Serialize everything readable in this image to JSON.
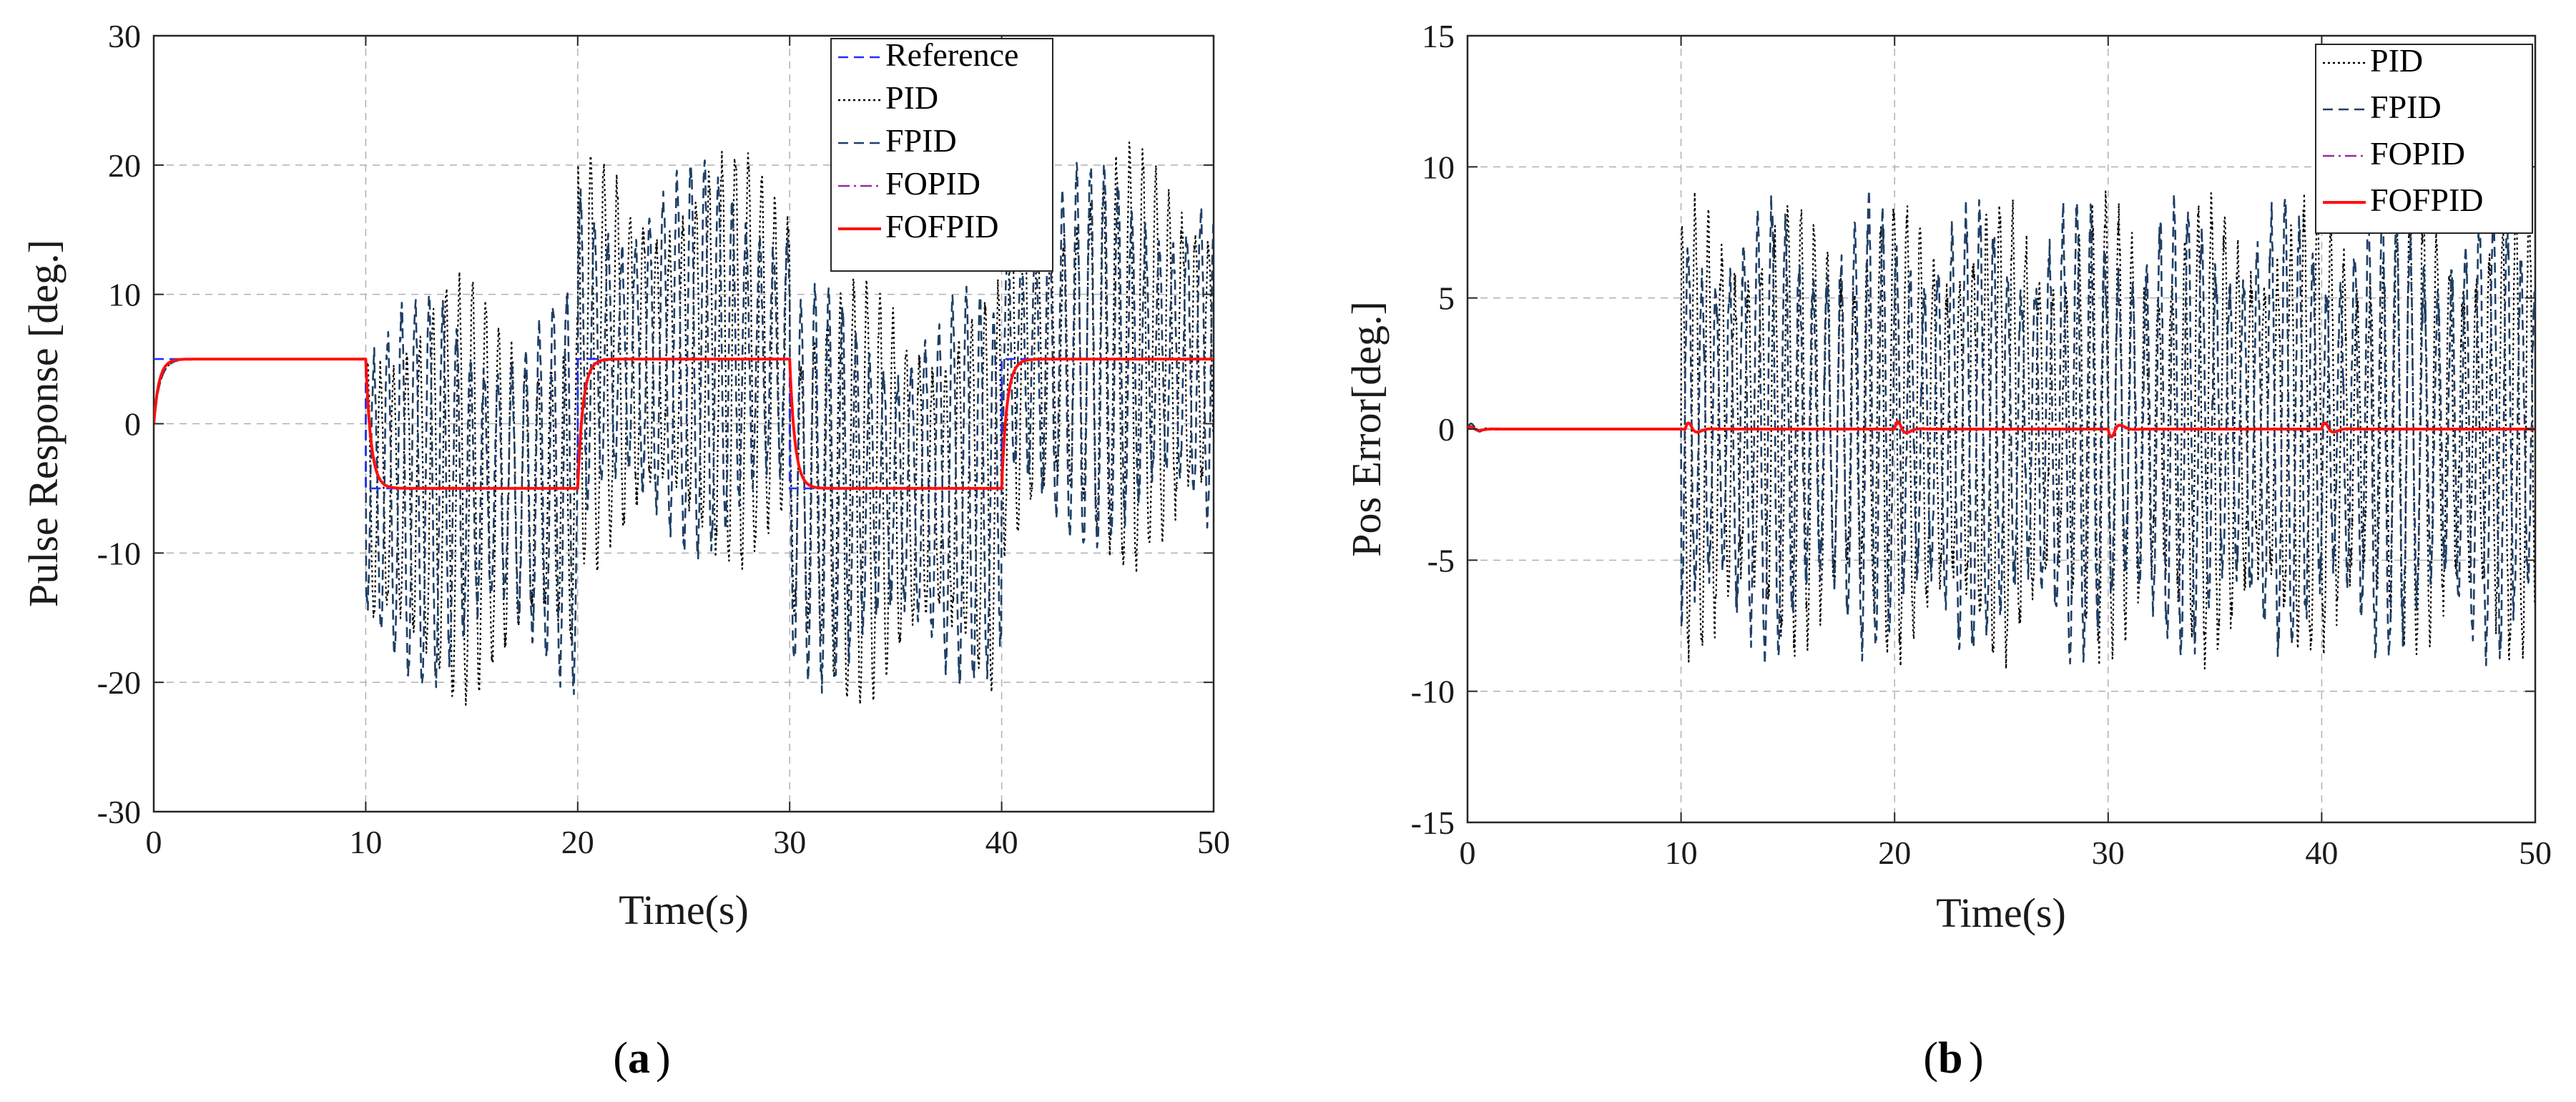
{
  "chart_data": [
    {
      "type": "line",
      "caption_label": "a",
      "xlabel": "Time(s)",
      "ylabel": "Pulse Response [deg.]",
      "xlim": [
        0,
        50
      ],
      "ylim": [
        -30,
        30
      ],
      "xticks": [
        0,
        10,
        20,
        30,
        40,
        50
      ],
      "yticks": [
        -30,
        -20,
        -10,
        0,
        10,
        20,
        30
      ],
      "xtick_labels": [
        "0",
        "10",
        "20",
        "30",
        "40",
        "50"
      ],
      "ytick_labels": [
        "-30",
        "-20",
        "-10",
        "0",
        "10",
        "20",
        "30"
      ],
      "grid": true,
      "legend_position": "top-right",
      "legend": [
        "Reference",
        "PID",
        "FPID",
        "FOPID",
        "FOFPID"
      ],
      "series": [
        {
          "name": "Reference",
          "color": "#2030ff",
          "dash": "dashed",
          "segments": [
            [
              0,
              5
            ],
            [
              10,
              5
            ],
            [
              10,
              -5
            ],
            [
              20,
              -5
            ],
            [
              20,
              5
            ],
            [
              30,
              5
            ],
            [
              30,
              -5
            ],
            [
              40,
              -5
            ],
            [
              40,
              5
            ],
            [
              50,
              5
            ]
          ]
        },
        {
          "name": "PID",
          "color": "#000000",
          "dash": "dotted",
          "behavior": "tracks first 10 s, then sustained oscillation about reference",
          "oscillation_amplitude": 16,
          "oscillation_period": 0.62
        },
        {
          "name": "FPID",
          "color": "#1f3f66",
          "dash": "dashed",
          "behavior": "tracks first 10 s, then sustained oscillation about reference",
          "oscillation_amplitude": 15,
          "oscillation_period": 0.65
        },
        {
          "name": "FOPID",
          "color": "#9a2aa0",
          "dash": "dashdot",
          "behavior": "tracks reference with first-order response",
          "time_constant": 0.25
        },
        {
          "name": "FOFPID",
          "color": "#ff1010",
          "dash": "solid",
          "behavior": "tracks reference with first-order response",
          "time_constant": 0.25
        }
      ]
    },
    {
      "type": "line",
      "caption_label": "b",
      "xlabel": "Time(s)",
      "ylabel": "Pos Error[deg.]",
      "xlim": [
        0,
        50
      ],
      "ylim": [
        -15,
        15
      ],
      "xticks": [
        0,
        10,
        20,
        30,
        40,
        50
      ],
      "yticks": [
        -15,
        -10,
        -5,
        0,
        5,
        10,
        15
      ],
      "xtick_labels": [
        "0",
        "10",
        "20",
        "30",
        "40",
        "50"
      ],
      "ytick_labels": [
        "-15",
        "-10",
        "-5",
        "0",
        "5",
        "10",
        "15"
      ],
      "grid": true,
      "legend_position": "top-right",
      "legend": [
        "PID",
        "FPID",
        "FOPID",
        "FOFPID"
      ],
      "series": [
        {
          "name": "PID",
          "color": "#000000",
          "dash": "dotted",
          "behavior": "near zero first 10 s, then oscillation",
          "oscillation_amplitude": 8.5,
          "oscillation_period": 0.62
        },
        {
          "name": "FPID",
          "color": "#1f3f66",
          "dash": "dashed",
          "behavior": "near zero first 10 s, then oscillation",
          "oscillation_amplitude": 8.5,
          "oscillation_period": 0.65
        },
        {
          "name": "FOPID",
          "color": "#9a2aa0",
          "dash": "dashdot",
          "behavior": "near zero with small spikes at 0, 10, 20, 30, 40 s"
        },
        {
          "name": "FOFPID",
          "color": "#ff1010",
          "dash": "solid",
          "behavior": "near zero with small spikes at 0, 10, 20, 30, 40 s",
          "spikes": [
            [
              0.3,
              0.4
            ],
            [
              10.5,
              1.0
            ],
            [
              20.3,
              1.2
            ],
            [
              30.3,
              -1.3
            ],
            [
              40.3,
              1.0
            ]
          ]
        }
      ]
    }
  ]
}
